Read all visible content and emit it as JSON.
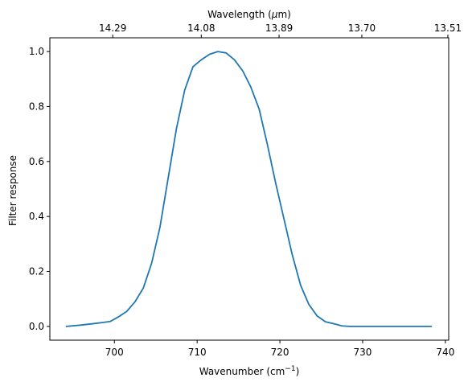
{
  "chart_data": {
    "type": "line",
    "title": "",
    "xlabel": "Wavenumber (cm",
    "xlabel_sup": "−1",
    "xlabel_suffix": ")",
    "ylabel": "Filter response",
    "top_xlabel_pre": "Wavelength (",
    "top_xlabel_mu": "μ",
    "top_xlabel_post": "m)",
    "xlim": [
      692.2,
      740.4
    ],
    "ylim": [
      -0.05,
      1.05
    ],
    "grid": false,
    "legend": "none",
    "xticks": [
      700,
      710,
      720,
      730,
      740
    ],
    "xtick_labels": [
      "700",
      "710",
      "720",
      "730",
      "740"
    ],
    "yticks": [
      0.0,
      0.2,
      0.4,
      0.6,
      0.8,
      1.0
    ],
    "ytick_labels": [
      "0.0",
      "0.2",
      "0.4",
      "0.6",
      "0.8",
      "1.0"
    ],
    "top_xticks": [
      699.8,
      710.5,
      719.9,
      729.9,
      740.3
    ],
    "top_xtick_labels": [
      "14.29",
      "14.08",
      "13.89",
      "13.70",
      "13.51"
    ],
    "colors": {
      "series": "#1f77b4"
    },
    "series": [
      {
        "x": [
          694.2,
          696.0,
          698.0,
          699.5,
          700.5,
          701.5,
          702.5,
          703.5,
          704.5,
          705.5,
          706.5,
          707.5,
          708.5,
          709.5,
          710.5,
          711.5,
          712.5,
          713.5,
          714.5,
          715.5,
          716.5,
          717.5,
          718.5,
          719.5,
          720.5,
          721.5,
          722.5,
          723.5,
          724.5,
          725.5,
          726.5,
          727.5,
          728.5,
          729.5,
          730.5,
          731.5,
          732.5,
          734.0,
          736.0,
          738.3
        ],
        "values": [
          0.0,
          0.005,
          0.012,
          0.018,
          0.035,
          0.055,
          0.09,
          0.14,
          0.23,
          0.36,
          0.54,
          0.72,
          0.86,
          0.945,
          0.97,
          0.99,
          1.0,
          0.995,
          0.97,
          0.93,
          0.87,
          0.79,
          0.66,
          0.52,
          0.39,
          0.26,
          0.15,
          0.08,
          0.038,
          0.017,
          0.01,
          0.002,
          0.0,
          0.0,
          0.0,
          0.0,
          0.0,
          0.0,
          0.0,
          0.0
        ]
      }
    ]
  }
}
